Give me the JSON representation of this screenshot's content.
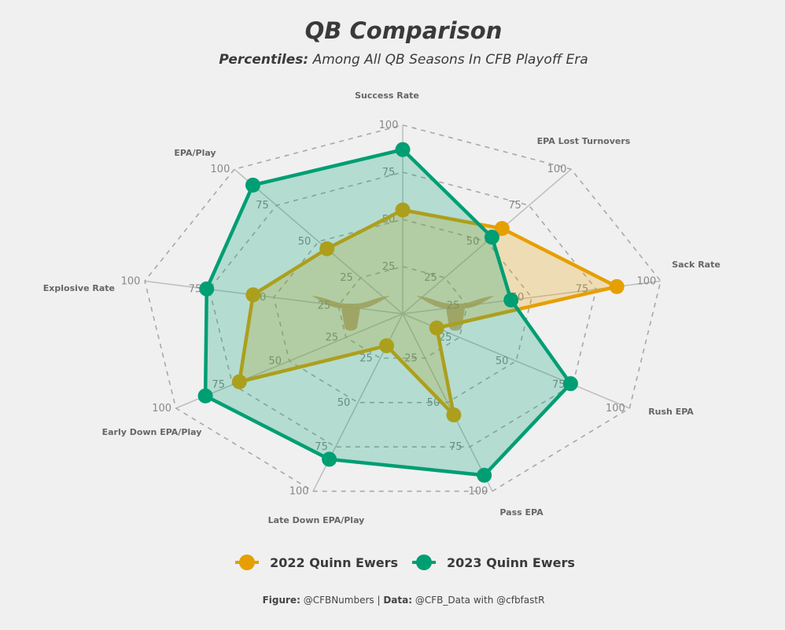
{
  "chart_data": {
    "type": "radar",
    "title": "QB Comparison",
    "subtitle_bold": "Percentiles:",
    "subtitle_rest": " Among All QB Seasons In CFB Playoff Era",
    "axes": [
      "Success Rate",
      "EPA Lost Turnovers",
      "Sack Rate",
      "Rush EPA",
      "Pass EPA",
      "Late Down EPA/Play",
      "Early Down EPA/Play",
      "Explosive Rate",
      "EPA/Play"
    ],
    "ring_ticks": [
      "25",
      "50",
      "75",
      "100"
    ],
    "ring_values": [
      25,
      50,
      75,
      100
    ],
    "range": [
      0,
      100
    ],
    "legend_position": "bottom",
    "series": [
      {
        "name": "2022 Quinn Ewers",
        "color": "#e69f00",
        "values": [
          55,
          59,
          83,
          15,
          57,
          18,
          72,
          58,
          45
        ]
      },
      {
        "name": "2023 Quinn Ewers",
        "color": "#009e73",
        "values": [
          87,
          53,
          42,
          74,
          91,
          82,
          87,
          76,
          89
        ]
      }
    ]
  },
  "footer": {
    "figure_label": "Figure:",
    "figure_value": " @CFBNumbers | ",
    "data_label": "Data:",
    "data_value": " @CFB_Data with @cfbfastR"
  }
}
